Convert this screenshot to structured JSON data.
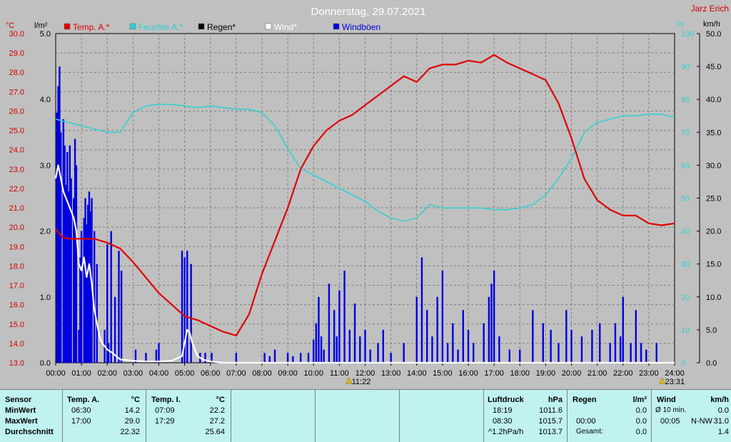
{
  "header": {
    "title": "Donnerstag, 29.07.2021",
    "station": "Jarz Erich"
  },
  "colors": {
    "temp_a": "#e00000",
    "humidity": "#30d0d0",
    "rain": "#000000",
    "wind": "#ffffff",
    "gusts": "#0000e0"
  },
  "legend": [
    {
      "label": "Temp. A.*",
      "color": "#e00000"
    },
    {
      "label": "Feuchte A.*",
      "color": "#30d0d0"
    },
    {
      "label": "Regen*",
      "color": "#000000"
    },
    {
      "label": "Wind*",
      "color": "#ffffff"
    },
    {
      "label": "Windböen",
      "color": "#0000e0"
    }
  ],
  "axis_units": {
    "temp": "°C",
    "rain": "l/m²",
    "humidity": "%",
    "wind": "km/h"
  },
  "markers": {
    "sunrise": "11:22",
    "sunset": "23:31"
  },
  "chart_data": {
    "type": "line",
    "title": "Donnerstag, 29.07.2021",
    "x_ticks": [
      "00:00",
      "01:00",
      "02:00",
      "03:00",
      "04:00",
      "05:00",
      "06:00",
      "07:00",
      "08:00",
      "09:00",
      "10:00",
      "11:00",
      "12:00",
      "13:00",
      "14:00",
      "15:00",
      "16:00",
      "17:00",
      "18:00",
      "19:00",
      "20:00",
      "21:00",
      "22:00",
      "23:00",
      "24:00"
    ],
    "temp_ticks": [
      "30.0",
      "29.0",
      "28.0",
      "27.0",
      "26.0",
      "25.0",
      "24.0",
      "23.0",
      "22.0",
      "21.0",
      "20.0",
      "19.0",
      "18.0",
      "17.0",
      "16.0",
      "15.0",
      "14.0",
      "13.0"
    ],
    "rain_ticks": [
      "5.0",
      "4.0",
      "3.0",
      "2.0",
      "1.0",
      "0.0"
    ],
    "humidity_ticks": [
      "100",
      "90",
      "80",
      "70",
      "60",
      "50",
      "40",
      "30",
      "20",
      "10",
      "0"
    ],
    "wind_ticks": [
      "50.0",
      "45.0",
      "40.0",
      "35.0",
      "30.0",
      "25.0",
      "20.0",
      "15.0",
      "10.0",
      "5.0",
      "0.0"
    ],
    "ranges": {
      "x": [
        0,
        24
      ],
      "temp": [
        13,
        30
      ],
      "rain": [
        0,
        5
      ],
      "humidity": [
        0,
        100
      ],
      "wind": [
        0,
        50
      ]
    },
    "grid": true,
    "series": [
      {
        "name": "Temp. A.*",
        "axis": "temp",
        "x": [
          0,
          0.25,
          0.5,
          1,
          1.5,
          2,
          2.5,
          3,
          3.5,
          4,
          4.5,
          5,
          5.5,
          6,
          6.5,
          7,
          7.5,
          8,
          8.5,
          9,
          9.5,
          10,
          10.5,
          11,
          11.5,
          12,
          12.5,
          13,
          13.5,
          14,
          14.5,
          15,
          15.5,
          16,
          16.5,
          17,
          17.5,
          18,
          18.5,
          19,
          19.5,
          20,
          20.5,
          21,
          21.5,
          22,
          22.5,
          23,
          23.5,
          24
        ],
        "y": [
          19.9,
          19.5,
          19.4,
          19.4,
          19.4,
          19.2,
          18.9,
          18.2,
          17.4,
          16.6,
          16.0,
          15.4,
          15.2,
          14.9,
          14.6,
          14.4,
          15.5,
          17.6,
          19.3,
          21.0,
          23.0,
          24.2,
          25.0,
          25.5,
          25.8,
          26.3,
          26.8,
          27.3,
          27.8,
          27.5,
          28.2,
          28.4,
          28.4,
          28.6,
          28.5,
          28.9,
          28.5,
          28.2,
          27.9,
          27.6,
          26.4,
          24.6,
          22.5,
          21.4,
          20.9,
          20.6,
          20.6,
          20.2,
          20.1,
          20.2
        ]
      },
      {
        "name": "Feuchte A.*",
        "axis": "humidity",
        "x": [
          0,
          0.5,
          1,
          1.5,
          2,
          2.5,
          3,
          3.5,
          4,
          4.5,
          5,
          5.5,
          6,
          6.5,
          7,
          7.5,
          8,
          8.5,
          9,
          9.5,
          10,
          10.5,
          11,
          11.5,
          12,
          12.5,
          13,
          13.5,
          14,
          14.5,
          15,
          15.5,
          16,
          16.5,
          17,
          17.5,
          18,
          18.5,
          19,
          19.5,
          20,
          20.5,
          21,
          21.5,
          22,
          22.5,
          23,
          23.5,
          24
        ],
        "y": [
          74,
          73,
          72,
          71,
          70,
          70,
          76,
          78,
          78.5,
          78.5,
          78,
          77.5,
          78,
          77.5,
          77,
          77,
          76,
          72,
          65,
          59,
          57,
          55,
          53,
          51,
          49,
          46,
          44,
          43,
          44,
          48,
          47,
          47,
          47,
          47,
          46.5,
          46.5,
          47,
          48,
          51,
          56,
          62,
          70,
          73,
          74,
          75,
          75,
          75.5,
          75.5,
          74.5
        ]
      },
      {
        "name": "Wind*",
        "axis": "wind",
        "x": [
          0,
          0.05,
          0.1,
          0.2,
          0.3,
          0.4,
          0.5,
          0.6,
          0.7,
          0.8,
          0.9,
          1.0,
          1.1,
          1.2,
          1.3,
          1.4,
          1.5,
          1.6,
          1.7,
          1.8,
          2.0,
          2.2,
          2.5,
          3.0,
          3.5,
          4.0,
          4.5,
          4.9,
          5.0,
          5.1,
          5.2,
          5.3,
          5.5,
          5.7,
          6.0,
          6.5,
          7,
          24
        ],
        "y": [
          28,
          29,
          30,
          28,
          26,
          25,
          24,
          23,
          22,
          20,
          15,
          14,
          16,
          13,
          15,
          12,
          8,
          6,
          4,
          3,
          2,
          1.5,
          0.5,
          0.3,
          0.2,
          0.2,
          0.3,
          1,
          3,
          5,
          4.5,
          3,
          1,
          0.5,
          0.2,
          0,
          0,
          0
        ]
      },
      {
        "name": "Windböen",
        "axis": "wind",
        "bars": [
          [
            0.05,
            38
          ],
          [
            0.1,
            42
          ],
          [
            0.15,
            45
          ],
          [
            0.2,
            35
          ],
          [
            0.3,
            37
          ],
          [
            0.35,
            33
          ],
          [
            0.4,
            27
          ],
          [
            0.45,
            32
          ],
          [
            0.5,
            26
          ],
          [
            0.55,
            33
          ],
          [
            0.6,
            28
          ],
          [
            0.7,
            25
          ],
          [
            0.75,
            34
          ],
          [
            0.8,
            30
          ],
          [
            0.9,
            5
          ],
          [
            0.95,
            16
          ],
          [
            1.0,
            20
          ],
          [
            1.1,
            22
          ],
          [
            1.15,
            25
          ],
          [
            1.2,
            21
          ],
          [
            1.25,
            24
          ],
          [
            1.3,
            26
          ],
          [
            1.35,
            23
          ],
          [
            1.4,
            25
          ],
          [
            1.5,
            20
          ],
          [
            1.6,
            15
          ],
          [
            1.9,
            5
          ],
          [
            2.0,
            18
          ],
          [
            2.05,
            3
          ],
          [
            2.15,
            20
          ],
          [
            2.3,
            10
          ],
          [
            2.45,
            17
          ],
          [
            2.55,
            14
          ],
          [
            3.1,
            2
          ],
          [
            3.5,
            1.5
          ],
          [
            3.9,
            2
          ],
          [
            4.0,
            3
          ],
          [
            4.9,
            17
          ],
          [
            5.0,
            16
          ],
          [
            5.1,
            17
          ],
          [
            5.25,
            15
          ],
          [
            5.6,
            1.5
          ],
          [
            5.8,
            1.5
          ],
          [
            6.05,
            1.5
          ],
          [
            7.0,
            1.5
          ],
          [
            8.1,
            1.5
          ],
          [
            8.3,
            1
          ],
          [
            8.5,
            2
          ],
          [
            9.0,
            1.5
          ],
          [
            9.2,
            1
          ],
          [
            9.5,
            1.5
          ],
          [
            9.8,
            1.5
          ],
          [
            10.0,
            3.5
          ],
          [
            10.1,
            6
          ],
          [
            10.2,
            10
          ],
          [
            10.3,
            4
          ],
          [
            10.4,
            2
          ],
          [
            10.6,
            12
          ],
          [
            10.8,
            8
          ],
          [
            10.9,
            4
          ],
          [
            11.0,
            11
          ],
          [
            11.2,
            14
          ],
          [
            11.4,
            5
          ],
          [
            11.6,
            9
          ],
          [
            11.8,
            4
          ],
          [
            12.0,
            5
          ],
          [
            12.2,
            2
          ],
          [
            12.5,
            3
          ],
          [
            12.7,
            5
          ],
          [
            13.0,
            1.5
          ],
          [
            13.5,
            3
          ],
          [
            14.0,
            10
          ],
          [
            14.2,
            16
          ],
          [
            14.4,
            8
          ],
          [
            14.6,
            4
          ],
          [
            14.8,
            10
          ],
          [
            15.0,
            14
          ],
          [
            15.2,
            3
          ],
          [
            15.4,
            6
          ],
          [
            15.6,
            2
          ],
          [
            15.8,
            8
          ],
          [
            16.0,
            5
          ],
          [
            16.2,
            3
          ],
          [
            16.6,
            6
          ],
          [
            16.8,
            10
          ],
          [
            16.9,
            12
          ],
          [
            17.0,
            14
          ],
          [
            17.2,
            4
          ],
          [
            17.6,
            2
          ],
          [
            18.0,
            2
          ],
          [
            18.5,
            8
          ],
          [
            18.9,
            6
          ],
          [
            19.2,
            5
          ],
          [
            19.5,
            3
          ],
          [
            19.8,
            8
          ],
          [
            20.0,
            5
          ],
          [
            20.4,
            4
          ],
          [
            20.8,
            5
          ],
          [
            21.1,
            6
          ],
          [
            21.5,
            3
          ],
          [
            21.7,
            6
          ],
          [
            21.9,
            4
          ],
          [
            22.0,
            10
          ],
          [
            22.3,
            3
          ],
          [
            22.5,
            8
          ],
          [
            22.7,
            3
          ],
          [
            22.9,
            2
          ],
          [
            23.3,
            3
          ]
        ]
      },
      {
        "name": "Regen*",
        "axis": "rain",
        "values": []
      }
    ]
  },
  "summary": {
    "sensor": {
      "header": "Sensor",
      "rows": [
        "MinWert",
        "MaxWert",
        "Durchschnitt"
      ]
    },
    "temp_a": {
      "header": "Temp. A.",
      "unit": "°C",
      "min_time": "06:30",
      "min": "14.2",
      "max_time": "17:00",
      "max": "29.0",
      "avg": "22.32"
    },
    "temp_i": {
      "header": "Temp. I.",
      "unit": "°C",
      "min_time": "07:09",
      "min": "22.2",
      "max_time": "17:29",
      "max": "27.2",
      "avg": "25.64"
    },
    "pressure": {
      "header": "Luftdruck",
      "unit": "hPa",
      "min_time": "18:19",
      "min": "1011.6",
      "max_time": "08:30",
      "max": "1015.7",
      "trend_label": "^1.2hPa/h",
      "trend_val": "1013.7"
    },
    "rain": {
      "header": "Regen",
      "unit": "l/m²",
      "row1": "0.0",
      "time2": "00:00",
      "row2": "0.0",
      "label3": "Gesamt:",
      "row3": "0.0"
    },
    "wind": {
      "header": "Wind",
      "unit": "km/h",
      "label1": "Ø 10 min.",
      "val1": "0.0",
      "time2": "00:05",
      "dir2": "N-NW",
      "val2": "31.0",
      "val3": "1.4"
    }
  }
}
